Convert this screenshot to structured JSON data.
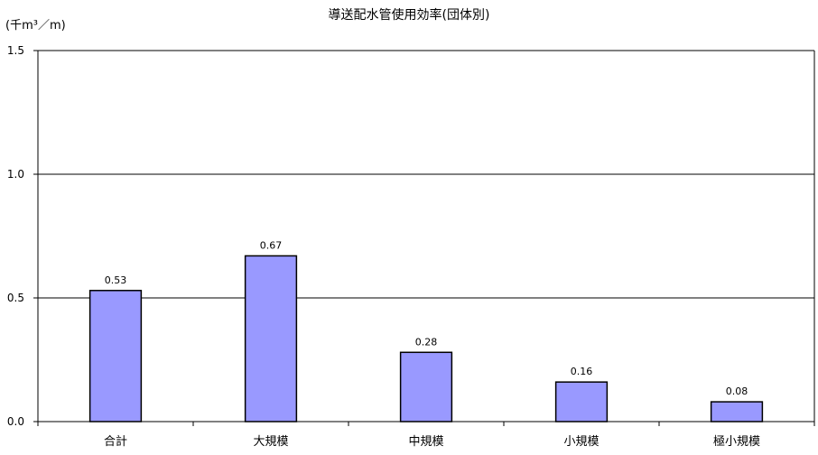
{
  "chart_data": {
    "type": "bar",
    "title": "導送配水管使用効率(団体別)",
    "unit_label": "(千m³／m)",
    "categories": [
      "合計",
      "大規模",
      "中規模",
      "小規模",
      "極小規模"
    ],
    "values": [
      0.53,
      0.67,
      0.28,
      0.16,
      0.08
    ],
    "value_labels": [
      "0.53",
      "0.67",
      "0.28",
      "0.16",
      "0.08"
    ],
    "ylim": [
      0,
      1.5
    ],
    "y_ticks": [
      0.0,
      0.5,
      1.0,
      1.5
    ],
    "y_tick_labels": [
      "0.0",
      "0.5",
      "1.0",
      "1.5"
    ],
    "grid": true,
    "legend": "none",
    "bar_color": "#9999ff",
    "bar_edge_color": "#000000"
  }
}
